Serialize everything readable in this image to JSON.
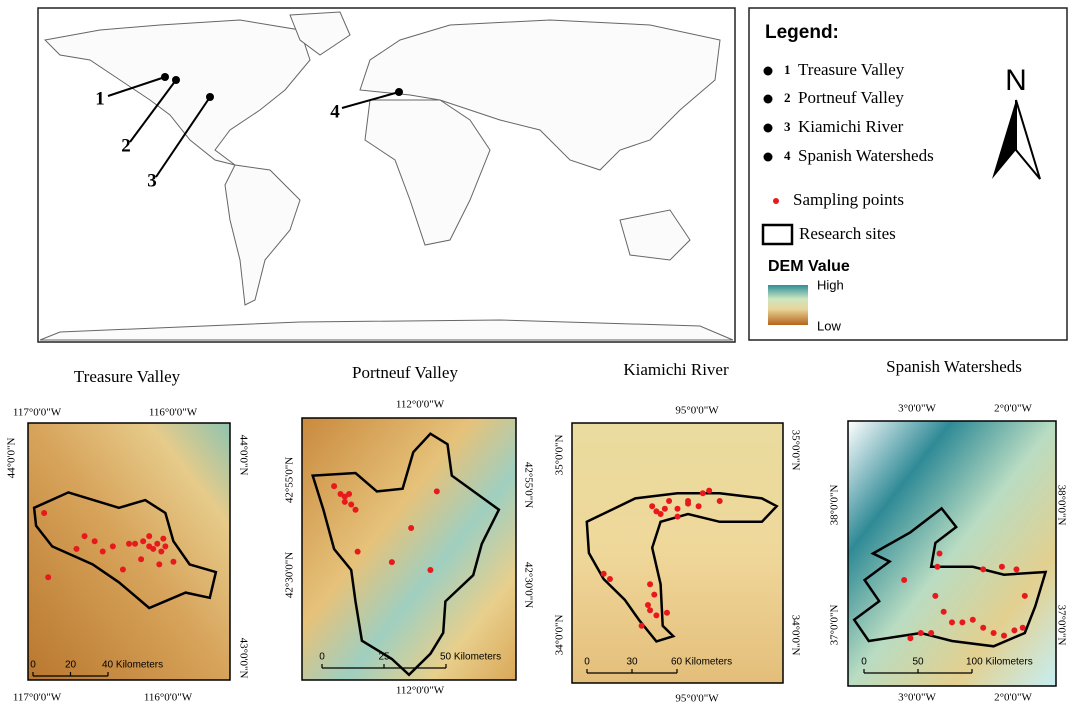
{
  "world_map": {
    "site_labels": [
      "1",
      "2",
      "3",
      "4"
    ]
  },
  "legend": {
    "title": "Legend:",
    "sites": [
      {
        "number": "1",
        "name": "Treasure Valley"
      },
      {
        "number": "2",
        "name": "Portneuf Valley"
      },
      {
        "number": "3",
        "name": "Kiamichi River"
      },
      {
        "number": "4",
        "name": "Spanish Watersheds"
      }
    ],
    "sampling_points": "Sampling points",
    "research_sites": "Research sites",
    "dem_title": "DEM Value",
    "dem_high": "High",
    "dem_low": "Low"
  },
  "north_arrow": "N",
  "panels": [
    {
      "title": "Treasure Valley",
      "top_labels": [
        "117°0'0\"W",
        "116°0'0\"W"
      ],
      "bottom_labels": [
        "117°0'0\"W",
        "116°0'0\"W"
      ],
      "left_labels": [
        "44°0'0\"N"
      ],
      "right_labels": [
        "44°0'0\"N",
        "43°0'0\"N"
      ],
      "scale": [
        "0",
        "20",
        "40 Kilometers"
      ]
    },
    {
      "title": "Portneuf Valley",
      "top_labels": [
        "112°0'0\"W"
      ],
      "bottom_labels": [
        "112°0'0\"W"
      ],
      "left_labels": [
        "42°55'0\"N",
        "42°30'0\"N"
      ],
      "right_labels": [
        "42°55'0\"N",
        "42°30'0\"N"
      ],
      "scale": [
        "0",
        "25",
        "50 Kilometers"
      ]
    },
    {
      "title": "Kiamichi River",
      "top_labels": [
        "95°0'0\"W"
      ],
      "bottom_labels": [
        "95°0'0\"W"
      ],
      "left_labels": [
        "35°0'0\"N",
        "34°0'0\"N"
      ],
      "right_labels": [
        "35°0'0\"N",
        "34°0'0\"N"
      ],
      "scale": [
        "0",
        "30",
        "60 Kilometers"
      ]
    },
    {
      "title": "Spanish Watersheds",
      "top_labels": [
        "3°0'0\"W",
        "2°0'0\"W"
      ],
      "bottom_labels": [
        "3°0'0\"W",
        "2°0'0\"W"
      ],
      "left_labels": [
        "38°0'0\"N",
        "37°0'0\"N"
      ],
      "right_labels": [
        "38°0'0\"N",
        "37°0'0\"N"
      ],
      "scale": [
        "0",
        "50",
        "100 Kilometers"
      ]
    }
  ]
}
